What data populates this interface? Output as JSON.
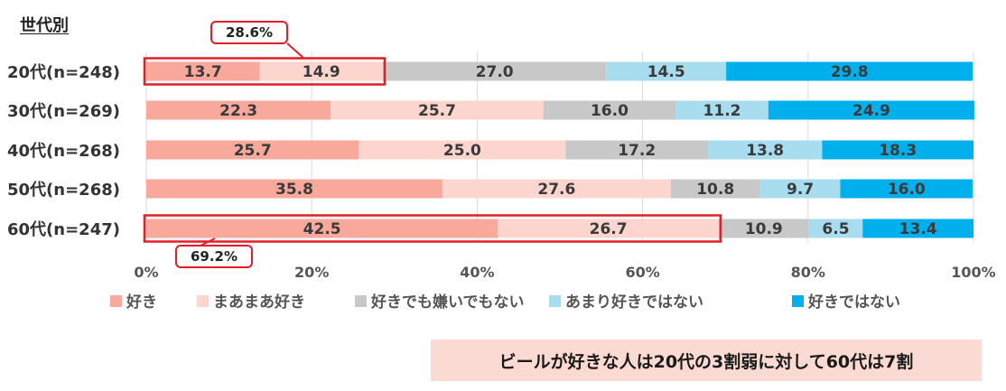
{
  "heading": "世代別",
  "summary": "ビールが好きな人は20代の3割弱に対して60代は7割",
  "colors": {
    "like": "#f9a99b",
    "somewhat_like": "#fcd5ce",
    "neutral": "#c8c8c8",
    "not_much": "#a8dcef",
    "dislike": "#00b0ec",
    "highlight": "#e01f26"
  },
  "callouts": {
    "top": "28.6%",
    "bottom": "69.2%"
  },
  "chart_data": {
    "type": "bar",
    "orientation": "horizontal",
    "stacked": true,
    "categories": [
      "20代(n=248)",
      "30代(n=269)",
      "40代(n=268)",
      "50代(n=268)",
      "60代(n=247)"
    ],
    "series": [
      {
        "name": "好き",
        "values": [
          13.7,
          22.3,
          25.7,
          35.8,
          42.5
        ]
      },
      {
        "name": "まあまあ好き",
        "values": [
          14.9,
          25.7,
          25.0,
          27.6,
          26.7
        ]
      },
      {
        "name": "好きでも嫌いでもない",
        "values": [
          27.0,
          16.0,
          17.2,
          10.8,
          10.9
        ]
      },
      {
        "name": "あまり好きではない",
        "values": [
          14.5,
          11.2,
          13.8,
          9.7,
          6.5
        ]
      },
      {
        "name": "好きではない",
        "values": [
          29.8,
          24.9,
          18.3,
          16.0,
          13.4
        ]
      }
    ],
    "x_ticks": [
      "0%",
      "20%",
      "40%",
      "60%",
      "80%",
      "100%"
    ],
    "xlim": [
      0,
      100
    ],
    "grid": "vertical",
    "legend_position": "bottom"
  }
}
